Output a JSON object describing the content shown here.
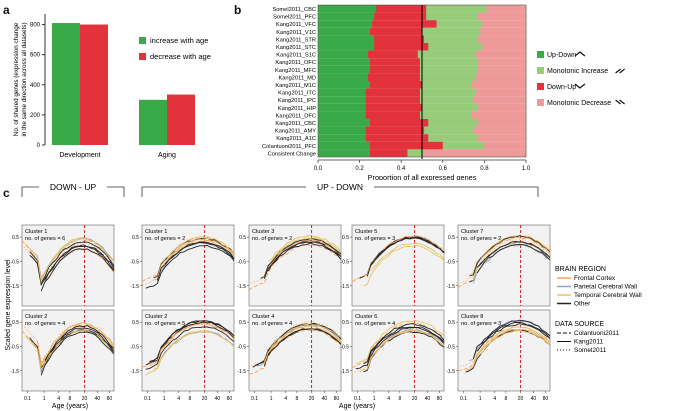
{
  "panel_labels": {
    "a": "a",
    "b": "b",
    "c": "c"
  },
  "colors": {
    "green": "#3aaa48",
    "red": "#e2323b",
    "light_green": "#96cc7a",
    "light_red": "#ef9a9a",
    "frontal": "#f4a35e",
    "parietal": "#8e9fce",
    "temporal": "#e8c463",
    "other": "#222222",
    "vline": "#c22"
  },
  "chart_data": [
    {
      "type": "bar",
      "panel": "a",
      "ylabel": "No. of shared genes (expression change in the same direction across all datasets)",
      "categories": [
        "Development",
        "Aging"
      ],
      "series": [
        {
          "name": "increase with age",
          "color": "#3aaa48",
          "values": [
            810,
            300
          ]
        },
        {
          "name": "decrease with age",
          "color": "#e2323b",
          "values": [
            800,
            335
          ]
        }
      ],
      "yticks": [
        0,
        200,
        400,
        600,
        800
      ],
      "ylim": [
        0,
        870
      ]
    },
    {
      "type": "bar",
      "panel": "b",
      "orientation": "horizontal-stacked",
      "xlabel": "Proportion of all expressed genes",
      "xticks": [
        "0.0",
        "0.2",
        "0.4",
        "0.6",
        "0.8",
        "1.0"
      ],
      "reference_line": 0.5,
      "categories": [
        "Somel2011_CBC",
        "Somel2011_PFC",
        "Kang2011_VFC",
        "Kang2011_V1C",
        "Kang2011_STR",
        "Kang2011_STC",
        "Kang2011_S1C",
        "Kang2011_OFC",
        "Kang2011_MFC",
        "Kang2011_MD",
        "Kang2011_M1C",
        "Kang2011_ITC",
        "Kang2011_IPC",
        "Kang2011_HIP",
        "Kang2011_DFC",
        "Kang2011_CBC",
        "Kang2011_AMY",
        "Kang2011_A1C",
        "Colantuoni2011_PFC",
        "Consistent Change"
      ],
      "series": [
        {
          "name": "Up-Down",
          "color": "#3aaa48",
          "values": [
            0.28,
            0.27,
            0.26,
            0.25,
            0.27,
            0.27,
            0.24,
            0.25,
            0.25,
            0.24,
            0.25,
            0.23,
            0.23,
            0.23,
            0.23,
            0.25,
            0.23,
            0.23,
            0.25,
            0.25
          ]
        },
        {
          "name": "Down-Up",
          "color": "#e2323b",
          "values": [
            0.24,
            0.25,
            0.31,
            0.25,
            0.24,
            0.26,
            0.24,
            0.24,
            0.24,
            0.25,
            0.25,
            0.26,
            0.26,
            0.27,
            0.26,
            0.28,
            0.28,
            0.3,
            0.35,
            0.18
          ]
        },
        {
          "name": "Monotonic Increase",
          "color": "#96cc7a",
          "values": [
            0.29,
            0.25,
            0.22,
            0.28,
            0.26,
            0.26,
            0.28,
            0.28,
            0.28,
            0.27,
            0.24,
            0.27,
            0.26,
            0.27,
            0.25,
            0.24,
            0.24,
            0.24,
            0.2,
            0.08
          ]
        },
        {
          "name": "Monotonic Decrease",
          "color": "#ef9a9a",
          "values": [
            0.19,
            0.23,
            0.21,
            0.22,
            0.23,
            0.21,
            0.24,
            0.23,
            0.23,
            0.24,
            0.26,
            0.24,
            0.25,
            0.23,
            0.26,
            0.23,
            0.25,
            0.23,
            0.2,
            0.49
          ]
        }
      ],
      "legend": [
        {
          "label": "Up-Down",
          "color": "#3aaa48",
          "glyph": "updown"
        },
        {
          "label": "Monotonic Increase",
          "color": "#96cc7a",
          "glyph": "up"
        },
        {
          "label": "Down-Up",
          "color": "#e2323b",
          "glyph": "downup"
        },
        {
          "label": "Monotonic Decrease",
          "color": "#ef9a9a",
          "glyph": "down"
        }
      ]
    },
    {
      "type": "line",
      "panel": "c",
      "ylabel": "Scaled gene expression level",
      "xlabel": "Age (years)",
      "xticks": [
        "0.1",
        "1",
        "4",
        "8",
        "20",
        "40",
        "80"
      ],
      "yticks": [
        "0.5",
        "-0.5",
        "-1.5"
      ],
      "group_titles": [
        "DOWN - UP",
        "UP - DOWN"
      ],
      "clusters": [
        {
          "name": "Cluster 1",
          "genes": "no. of genes = 6",
          "shape": "downup"
        },
        {
          "name": "Cluster 2",
          "genes": "no. of genes = 4",
          "shape": "downup"
        },
        {
          "name": "Cluster 1",
          "genes": "no. of genes = 2",
          "shape": "updown"
        },
        {
          "name": "Cluster 2",
          "genes": "no. of genes = 5",
          "shape": "updown"
        },
        {
          "name": "Cluster 3",
          "genes": "no. of genes = 2",
          "shape": "updown"
        },
        {
          "name": "Cluster 4",
          "genes": "no. of genes = 4",
          "shape": "updown"
        },
        {
          "name": "Cluster 5",
          "genes": "no. of genes = 3",
          "shape": "updown"
        },
        {
          "name": "Cluster 6",
          "genes": "no. of genes = 4",
          "shape": "updown"
        },
        {
          "name": "Cluster 7",
          "genes": "no. of genes = 2",
          "shape": "updown"
        },
        {
          "name": "Cluster 8",
          "genes": "no. of genes = 3",
          "shape": "updown"
        }
      ],
      "legend": {
        "brain_region_title": "BRAIN REGION",
        "brain_regions": [
          {
            "label": "Frontal Cortex",
            "color": "#f4a35e"
          },
          {
            "label": "Parietal Cerebral Wall",
            "color": "#8e9fce"
          },
          {
            "label": "Temporal Cerebral Wall",
            "color": "#e8c463"
          },
          {
            "label": "Other",
            "color": "#222222"
          }
        ],
        "data_source_title": "DATA SOURCE",
        "data_sources": [
          {
            "label": "Colantuoni2011",
            "dash": "4,2"
          },
          {
            "label": "Kang2011",
            "dash": ""
          },
          {
            "label": "Somel2011",
            "dash": "1,2"
          }
        ]
      }
    }
  ]
}
